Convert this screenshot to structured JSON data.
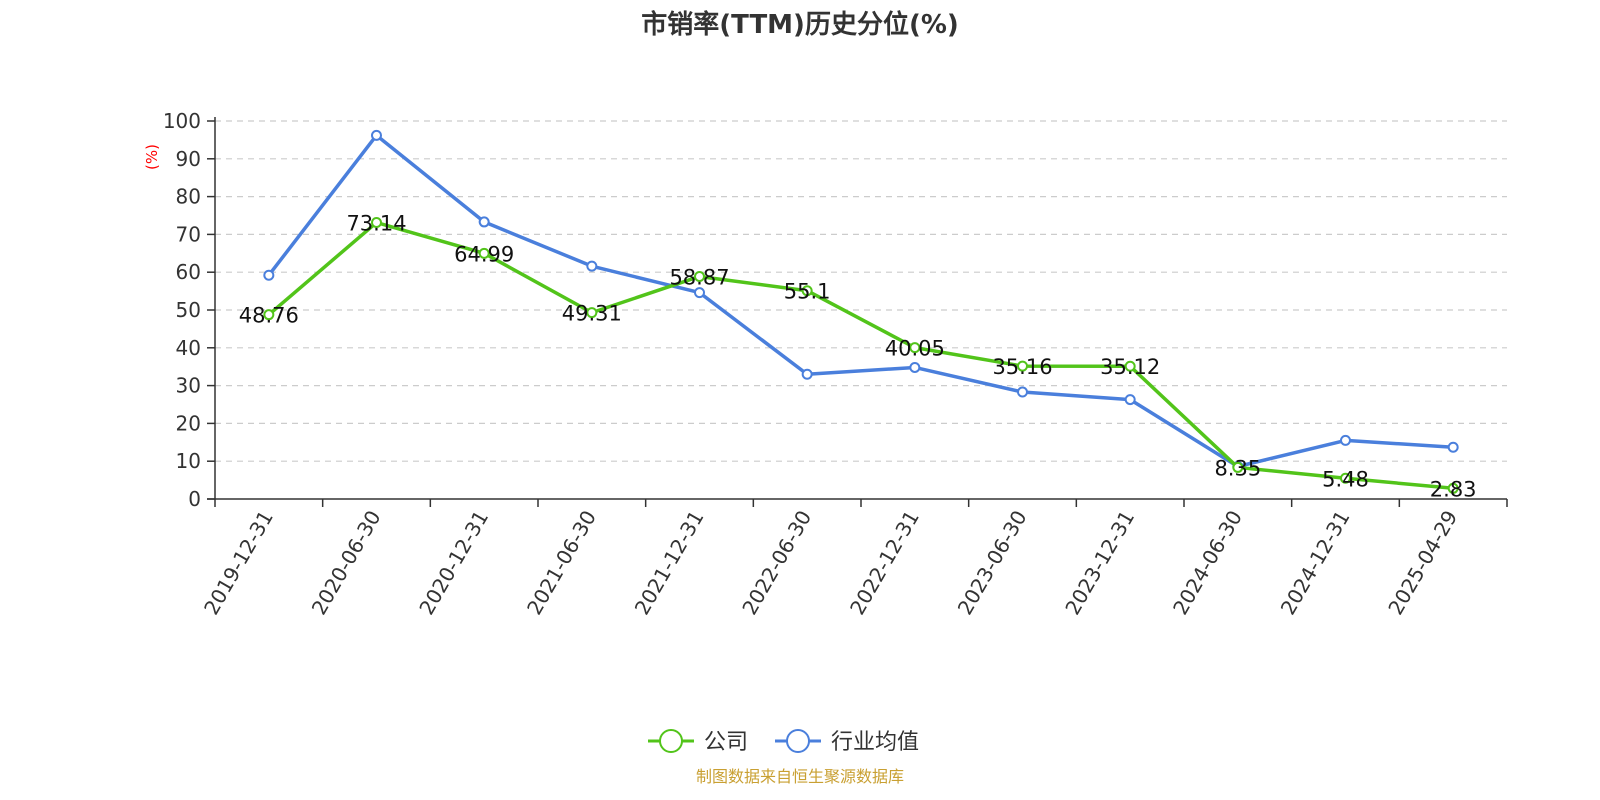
{
  "chart_data": {
    "type": "line",
    "title": "市销率(TTM)历史分位(%)",
    "ylabel": "(%)",
    "ylim": [
      0,
      100
    ],
    "yticks": [
      0,
      10,
      20,
      30,
      40,
      50,
      60,
      70,
      80,
      90,
      100
    ],
    "grid": true,
    "legend_position": "bottom",
    "categories": [
      "2019-12-31",
      "2020-06-30",
      "2020-12-31",
      "2021-06-30",
      "2021-12-31",
      "2022-06-30",
      "2022-12-31",
      "2023-06-30",
      "2023-12-31",
      "2024-06-30",
      "2024-12-31",
      "2025-04-29"
    ],
    "series": [
      {
        "name": "公司",
        "color": "#52c41a",
        "values": [
          48.76,
          73.14,
          64.99,
          49.31,
          58.87,
          55.1,
          40.05,
          35.16,
          35.12,
          8.35,
          5.48,
          2.83
        ],
        "labels": [
          "48.76",
          "73.14",
          "64.99",
          "49.31",
          "58.87",
          "55.1",
          "40.05",
          "35.16",
          "35.12",
          "8.35",
          "5.48",
          "2.83"
        ]
      },
      {
        "name": "行业均值",
        "color": "#4a7fdc",
        "values": [
          59.2,
          96.2,
          73.3,
          61.6,
          54.6,
          33.0,
          34.8,
          28.3,
          26.3,
          8.6,
          15.5,
          13.7
        ]
      }
    ],
    "source": "制图数据来自恒生聚源数据库",
    "source_color": "#c9a032",
    "unit_color": "#ff0000"
  }
}
